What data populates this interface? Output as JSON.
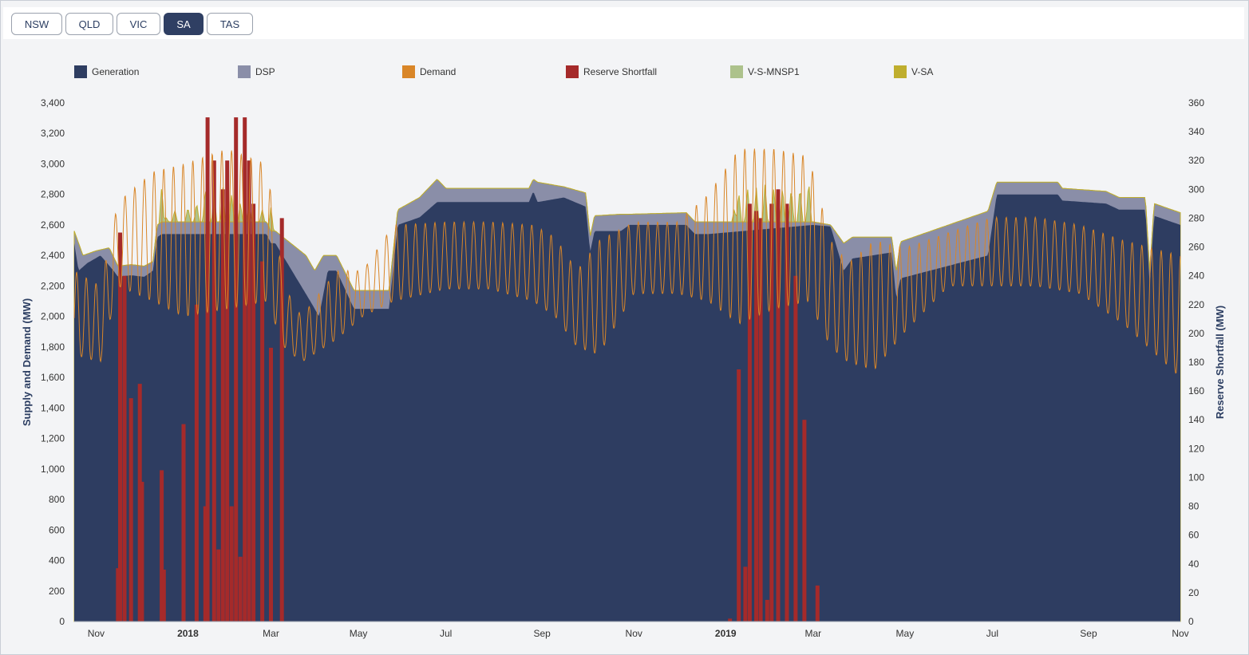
{
  "tabs": [
    {
      "label": "NSW",
      "active": false
    },
    {
      "label": "QLD",
      "active": false
    },
    {
      "label": "VIC",
      "active": false
    },
    {
      "label": "SA",
      "active": true
    },
    {
      "label": "TAS",
      "active": false
    }
  ],
  "legend": [
    {
      "label": "Generation",
      "color": "#2e3d61"
    },
    {
      "label": "DSP",
      "color": "#8a8ea8"
    },
    {
      "label": "Demand",
      "color": "#d98628"
    },
    {
      "label": "Reserve Shortfall",
      "color": "#a52a2a"
    },
    {
      "label": "V-S-MNSP1",
      "color": "#adc28c"
    },
    {
      "label": "V-SA",
      "color": "#bfae2e"
    }
  ],
  "chart_data": {
    "type": "area",
    "title": "",
    "ylabel_left": "Supply and Demand (MW)",
    "ylabel_right": "Reserve Shortfall (MW)",
    "ylim_left": [
      0,
      3400
    ],
    "ylim_right": [
      0,
      360
    ],
    "yticks_left": [
      "0",
      "200",
      "400",
      "600",
      "800",
      "1,000",
      "1,200",
      "1,400",
      "1,600",
      "1,800",
      "2,000",
      "2,200",
      "2,400",
      "2,600",
      "2,800",
      "3,000",
      "3,200",
      "3,400"
    ],
    "yticks_right": [
      "0",
      "20",
      "40",
      "60",
      "80",
      "100",
      "120",
      "140",
      "160",
      "180",
      "200",
      "220",
      "240",
      "260",
      "280",
      "300",
      "320",
      "340",
      "360"
    ],
    "x_range_months": [
      0,
      25.3
    ],
    "xticks": [
      {
        "label": "Nov",
        "m": 0.5,
        "bold": false
      },
      {
        "label": "2018",
        "m": 2.6,
        "bold": true
      },
      {
        "label": "Mar",
        "m": 4.5,
        "bold": false
      },
      {
        "label": "May",
        "m": 6.5,
        "bold": false
      },
      {
        "label": "Jul",
        "m": 8.5,
        "bold": false
      },
      {
        "label": "Sep",
        "m": 10.7,
        "bold": false
      },
      {
        "label": "Nov",
        "m": 12.8,
        "bold": false
      },
      {
        "label": "2019",
        "m": 14.9,
        "bold": true
      },
      {
        "label": "Mar",
        "m": 16.9,
        "bold": false
      },
      {
        "label": "May",
        "m": 19.0,
        "bold": false
      },
      {
        "label": "Jul",
        "m": 21.0,
        "bold": false
      },
      {
        "label": "Sep",
        "m": 23.2,
        "bold": false
      },
      {
        "label": "Nov",
        "m": 25.3,
        "bold": false
      }
    ],
    "generation": [
      [
        0,
        2480
      ],
      [
        0.1,
        2300
      ],
      [
        0.3,
        2350
      ],
      [
        0.6,
        2400
      ],
      [
        0.9,
        2300
      ],
      [
        1.0,
        2260
      ],
      [
        1.3,
        2270
      ],
      [
        1.6,
        2260
      ],
      [
        1.8,
        2300
      ],
      [
        1.9,
        2520
      ],
      [
        2.0,
        2540
      ],
      [
        4.4,
        2540
      ],
      [
        4.5,
        2480
      ],
      [
        4.6,
        2480
      ],
      [
        5.4,
        2100
      ],
      [
        5.6,
        2000
      ],
      [
        5.8,
        2300
      ],
      [
        6.0,
        2300
      ],
      [
        6.4,
        2050
      ],
      [
        7.2,
        2050
      ],
      [
        7.4,
        2600
      ],
      [
        7.9,
        2650
      ],
      [
        8.3,
        2750
      ],
      [
        8.5,
        2750
      ],
      [
        10.4,
        2750
      ],
      [
        10.5,
        2820
      ],
      [
        10.6,
        2750
      ],
      [
        11.2,
        2780
      ],
      [
        11.7,
        2720
      ],
      [
        11.8,
        2420
      ],
      [
        11.9,
        2560
      ],
      [
        12.5,
        2560
      ],
      [
        12.7,
        2600
      ],
      [
        14.0,
        2600
      ],
      [
        14.2,
        2540
      ],
      [
        14.5,
        2540
      ],
      [
        16.9,
        2600
      ],
      [
        17.3,
        2590
      ],
      [
        17.6,
        2300
      ],
      [
        17.8,
        2380
      ],
      [
        18.7,
        2420
      ],
      [
        18.8,
        2120
      ],
      [
        18.9,
        2250
      ],
      [
        20.9,
        2400
      ],
      [
        21.1,
        2800
      ],
      [
        22.5,
        2800
      ],
      [
        22.6,
        2760
      ],
      [
        23.6,
        2740
      ],
      [
        23.9,
        2700
      ],
      [
        24.5,
        2700
      ],
      [
        24.6,
        2200
      ],
      [
        24.7,
        2660
      ],
      [
        25.3,
        2600
      ]
    ],
    "dsp": [
      [
        0,
        2560
      ],
      [
        0.2,
        2400
      ],
      [
        0.5,
        2430
      ],
      [
        0.8,
        2450
      ],
      [
        1.0,
        2330
      ],
      [
        1.3,
        2340
      ],
      [
        1.6,
        2330
      ],
      [
        1.8,
        2360
      ],
      [
        1.9,
        2600
      ],
      [
        2.0,
        2620
      ],
      [
        4.4,
        2620
      ],
      [
        4.5,
        2560
      ],
      [
        4.6,
        2560
      ],
      [
        5.3,
        2400
      ],
      [
        5.5,
        2300
      ],
      [
        5.7,
        2400
      ],
      [
        6.0,
        2400
      ],
      [
        6.4,
        2170
      ],
      [
        7.2,
        2170
      ],
      [
        7.4,
        2700
      ],
      [
        7.9,
        2780
      ],
      [
        8.3,
        2900
      ],
      [
        8.5,
        2840
      ],
      [
        10.4,
        2840
      ],
      [
        10.5,
        2900
      ],
      [
        10.6,
        2880
      ],
      [
        11.2,
        2850
      ],
      [
        11.7,
        2810
      ],
      [
        11.8,
        2520
      ],
      [
        11.9,
        2660
      ],
      [
        12.5,
        2670
      ],
      [
        12.7,
        2670
      ],
      [
        14.0,
        2680
      ],
      [
        14.2,
        2620
      ],
      [
        14.5,
        2620
      ],
      [
        16.9,
        2620
      ],
      [
        17.3,
        2600
      ],
      [
        17.6,
        2480
      ],
      [
        17.8,
        2520
      ],
      [
        18.7,
        2520
      ],
      [
        18.8,
        2290
      ],
      [
        18.9,
        2490
      ],
      [
        20.9,
        2690
      ],
      [
        21.1,
        2880
      ],
      [
        22.5,
        2880
      ],
      [
        22.6,
        2840
      ],
      [
        23.6,
        2820
      ],
      [
        23.9,
        2780
      ],
      [
        24.5,
        2780
      ],
      [
        24.6,
        2290
      ],
      [
        24.7,
        2740
      ],
      [
        25.3,
        2680
      ]
    ],
    "shortfall": [
      [
        1.0,
        37
      ],
      [
        1.05,
        270
      ],
      [
        1.15,
        240
      ],
      [
        1.3,
        155
      ],
      [
        1.5,
        165
      ],
      [
        1.55,
        97
      ],
      [
        2.0,
        105
      ],
      [
        2.05,
        36
      ],
      [
        2.5,
        137
      ],
      [
        2.8,
        220
      ],
      [
        3.0,
        80
      ],
      [
        3.05,
        350
      ],
      [
        3.2,
        320
      ],
      [
        3.3,
        50
      ],
      [
        3.4,
        300
      ],
      [
        3.5,
        320
      ],
      [
        3.6,
        80
      ],
      [
        3.7,
        350
      ],
      [
        3.8,
        45
      ],
      [
        3.9,
        350
      ],
      [
        4.0,
        320
      ],
      [
        4.1,
        290
      ],
      [
        4.3,
        250
      ],
      [
        4.5,
        190
      ],
      [
        4.75,
        280
      ],
      [
        15.0,
        2
      ],
      [
        15.2,
        175
      ],
      [
        15.35,
        38
      ],
      [
        15.45,
        290
      ],
      [
        15.6,
        285
      ],
      [
        15.7,
        280
      ],
      [
        15.85,
        15
      ],
      [
        15.95,
        290
      ],
      [
        16.1,
        300
      ],
      [
        16.3,
        290
      ],
      [
        16.5,
        240
      ],
      [
        16.7,
        140
      ],
      [
        17.0,
        25
      ]
    ],
    "v_s_mnsp1_peaks": [
      [
        2.0,
        2850
      ],
      [
        2.1,
        2650
      ],
      [
        2.3,
        2700
      ],
      [
        2.6,
        2720
      ],
      [
        2.8,
        2750
      ],
      [
        3.0,
        2850
      ],
      [
        3.2,
        2820
      ],
      [
        3.4,
        2850
      ],
      [
        3.6,
        2800
      ],
      [
        3.8,
        2750
      ],
      [
        4.0,
        2780
      ],
      [
        4.3,
        2700
      ],
      [
        4.5,
        2720
      ],
      [
        15.1,
        2700
      ],
      [
        15.2,
        2820
      ],
      [
        15.4,
        2850
      ],
      [
        15.6,
        2850
      ],
      [
        15.8,
        2870
      ],
      [
        16.0,
        2850
      ],
      [
        16.2,
        2860
      ],
      [
        16.4,
        2850
      ],
      [
        16.6,
        2860
      ],
      [
        16.8,
        2900
      ]
    ],
    "demand_envelope": [
      [
        0,
        2300,
        1750
      ],
      [
        0.6,
        2200,
        1700
      ],
      [
        1.0,
        2750,
        2200
      ],
      [
        1.8,
        2950,
        2100
      ],
      [
        2.5,
        3000,
        2000
      ],
      [
        3.5,
        3100,
        2050
      ],
      [
        4.4,
        3000,
        2100
      ],
      [
        4.8,
        2200,
        1800
      ],
      [
        5.2,
        2000,
        1700
      ],
      [
        6.0,
        2300,
        1850
      ],
      [
        6.6,
        2300,
        2000
      ],
      [
        7.3,
        2600,
        2100
      ],
      [
        8.5,
        2620,
        2180
      ],
      [
        9.5,
        2620,
        2180
      ],
      [
        10.5,
        2600,
        2100
      ],
      [
        11.0,
        2520,
        2000
      ],
      [
        11.5,
        2300,
        1800
      ],
      [
        12.0,
        2500,
        1750
      ],
      [
        12.8,
        2620,
        2150
      ],
      [
        13.8,
        2620,
        2150
      ],
      [
        14.5,
        2800,
        2100
      ],
      [
        15.2,
        3100,
        1950
      ],
      [
        16.0,
        3100,
        2050
      ],
      [
        16.8,
        3050,
        2100
      ],
      [
        17.3,
        2500,
        1800
      ],
      [
        17.7,
        2350,
        1700
      ],
      [
        18.3,
        2500,
        1650
      ],
      [
        19.0,
        2450,
        1900
      ],
      [
        20.0,
        2550,
        2200
      ],
      [
        21.0,
        2650,
        2200
      ],
      [
        22.0,
        2650,
        2200
      ],
      [
        23.0,
        2600,
        2150
      ],
      [
        24.0,
        2500,
        1950
      ],
      [
        25.3,
        2400,
        1600
      ]
    ]
  }
}
